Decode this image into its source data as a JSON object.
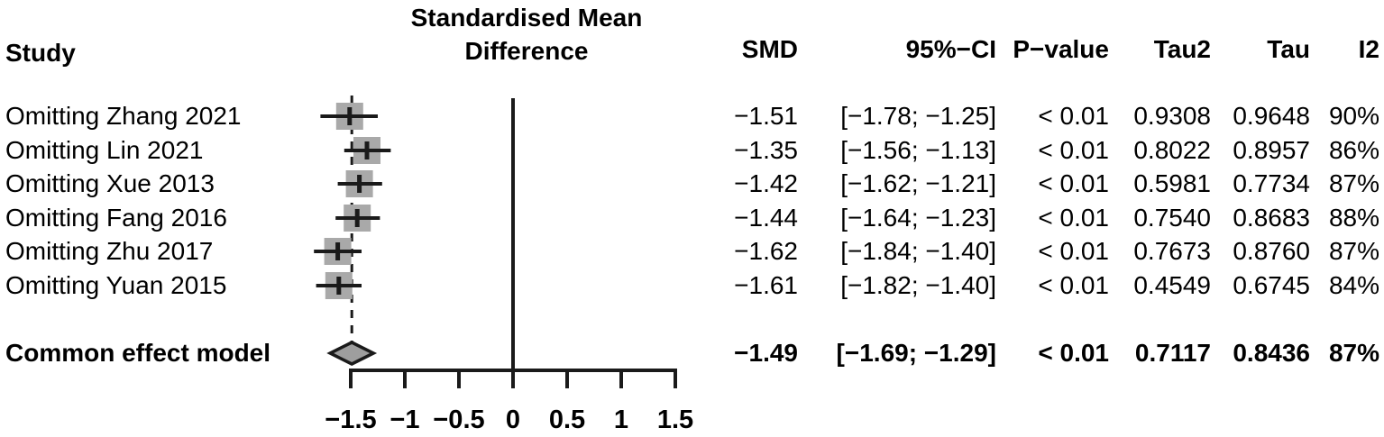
{
  "header": {
    "study": "Study",
    "title_line1": "Standardised Mean",
    "title_line2": "Difference",
    "smd": "SMD",
    "ci": "95%−CI",
    "p": "P−value",
    "tau2": "Tau2",
    "tau": "Tau",
    "i2": "I2"
  },
  "rows": [
    {
      "label": "Omitting Zhang 2021",
      "smd": "−1.51",
      "ci": "[−1.78; −1.25]",
      "p": "< 0.01",
      "tau2": "0.9308",
      "tau": "0.9648",
      "i2": "90%"
    },
    {
      "label": "Omitting Lin 2021",
      "smd": "−1.35",
      "ci": "[−1.56; −1.13]",
      "p": "< 0.01",
      "tau2": "0.8022",
      "tau": "0.8957",
      "i2": "86%"
    },
    {
      "label": "Omitting Xue 2013",
      "smd": "−1.42",
      "ci": "[−1.62; −1.21]",
      "p": "< 0.01",
      "tau2": "0.5981",
      "tau": "0.7734",
      "i2": "87%"
    },
    {
      "label": "Omitting Fang 2016",
      "smd": "−1.44",
      "ci": "[−1.64; −1.23]",
      "p": "< 0.01",
      "tau2": "0.7540",
      "tau": "0.8683",
      "i2": "88%"
    },
    {
      "label": "Omitting Zhu 2017",
      "smd": "−1.62",
      "ci": "[−1.84; −1.40]",
      "p": "< 0.01",
      "tau2": "0.7673",
      "tau": "0.8760",
      "i2": "87%"
    },
    {
      "label": "Omitting Yuan 2015",
      "smd": "−1.61",
      "ci": "[−1.82; −1.40]",
      "p": "< 0.01",
      "tau2": "0.4549",
      "tau": "0.6745",
      "i2": "84%"
    }
  ],
  "common": {
    "label": "Common effect model",
    "smd": "−1.49",
    "ci": "[−1.69; −1.29]",
    "p": "< 0.01",
    "tau2": "0.7117",
    "tau": "0.8436",
    "i2": "87%"
  },
  "chart_data": {
    "type": "scatter",
    "subtype": "forest-plot-leave-one-out",
    "title": "Standardised Mean Difference",
    "xlabel": "Standardised Mean Difference",
    "x_ticks": [
      -1.5,
      -1,
      -0.5,
      0,
      0.5,
      1,
      1.5
    ],
    "x_tick_labels": [
      "−1.5",
      "−1",
      "−0.5",
      "0",
      "0.5",
      "1",
      "1.5"
    ],
    "xlim": [
      -1.5,
      1.5
    ],
    "reference_line_x": 0,
    "pooled_dashed_line_x": -1.49,
    "grid": false,
    "studies": [
      {
        "name": "Omitting Zhang 2021",
        "smd": -1.51,
        "ci_low": -1.78,
        "ci_high": -1.25,
        "p": "< 0.01",
        "tau2": 0.9308,
        "tau": 0.9648,
        "i2_pct": 90
      },
      {
        "name": "Omitting Lin 2021",
        "smd": -1.35,
        "ci_low": -1.56,
        "ci_high": -1.13,
        "p": "< 0.01",
        "tau2": 0.8022,
        "tau": 0.8957,
        "i2_pct": 86
      },
      {
        "name": "Omitting Xue 2013",
        "smd": -1.42,
        "ci_low": -1.62,
        "ci_high": -1.21,
        "p": "< 0.01",
        "tau2": 0.5981,
        "tau": 0.7734,
        "i2_pct": 87
      },
      {
        "name": "Omitting Fang 2016",
        "smd": -1.44,
        "ci_low": -1.64,
        "ci_high": -1.23,
        "p": "< 0.01",
        "tau2": 0.754,
        "tau": 0.8683,
        "i2_pct": 88
      },
      {
        "name": "Omitting Zhu 2017",
        "smd": -1.62,
        "ci_low": -1.84,
        "ci_high": -1.4,
        "p": "< 0.01",
        "tau2": 0.7673,
        "tau": 0.876,
        "i2_pct": 87
      },
      {
        "name": "Omitting Yuan 2015",
        "smd": -1.61,
        "ci_low": -1.82,
        "ci_high": -1.4,
        "p": "< 0.01",
        "tau2": 0.4549,
        "tau": 0.6745,
        "i2_pct": 84
      }
    ],
    "pooled": {
      "name": "Common effect model",
      "smd": -1.49,
      "ci_low": -1.69,
      "ci_high": -1.29,
      "p": "< 0.01",
      "tau2": 0.7117,
      "tau": 0.8436,
      "i2_pct": 87
    },
    "colors": {
      "square_fill": "#a9a9a9",
      "diamond_fill": "#9e9e9e",
      "line": "#1a1a1a",
      "text": "#000000",
      "background": "#ffffff"
    }
  }
}
